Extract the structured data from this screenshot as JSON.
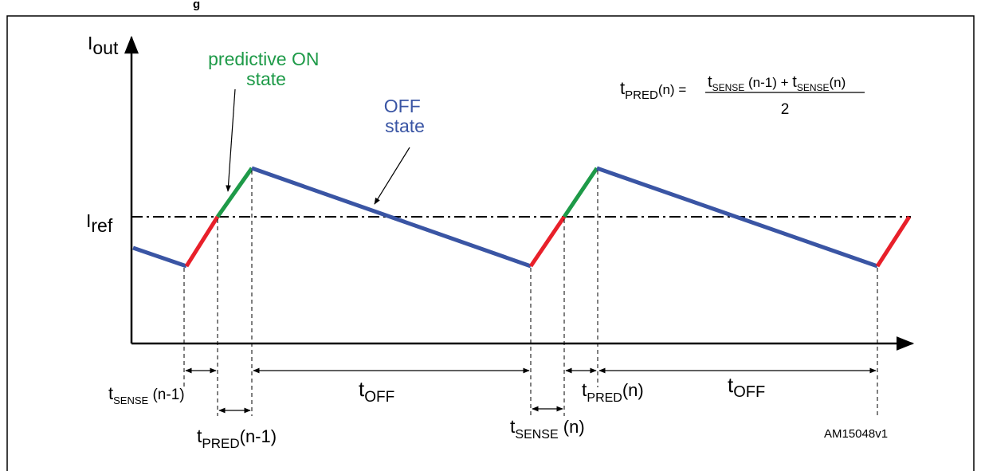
{
  "figure_caption_fragment": "g",
  "axes": {
    "y_label": "I",
    "y_label_sub": "out"
  },
  "reference": {
    "label": "I",
    "label_sub": "ref"
  },
  "annotations": {
    "predictive_on_line1": "predictive ON",
    "predictive_on_line2": "state",
    "off_line1": "OFF",
    "off_line2": "state"
  },
  "formula": {
    "lhs_t": "t",
    "lhs_sub": "PRED",
    "lhs_arg": "(n) =",
    "num_t1": "t",
    "num_sub1": "SENSE",
    "num_arg1": " (n-1) + ",
    "num_t2": "t",
    "num_sub2": "SENSE",
    "num_arg2": "(n)",
    "denominator": "2"
  },
  "timing_labels": {
    "tsense_prev": {
      "t": "t",
      "sub": "SENSE",
      "arg": " (n-1)"
    },
    "tpred_prev": {
      "t": "t",
      "sub": "PRED",
      "arg": "(n-1)"
    },
    "toff_1": {
      "t": "t",
      "sub": "OFF"
    },
    "tsense_n": {
      "t": "t",
      "sub": "SENSE",
      "arg": " (n)"
    },
    "tpred_n": {
      "t": "t",
      "sub": "PRED",
      "arg": "(n)"
    },
    "toff_2": {
      "t": "t",
      "sub": "OFF"
    }
  },
  "figure_id": "AM15048v1",
  "colors": {
    "sense": "#e8202a",
    "predictive": "#1e9a48",
    "off": "#3a55a4",
    "axis": "#000000"
  }
}
